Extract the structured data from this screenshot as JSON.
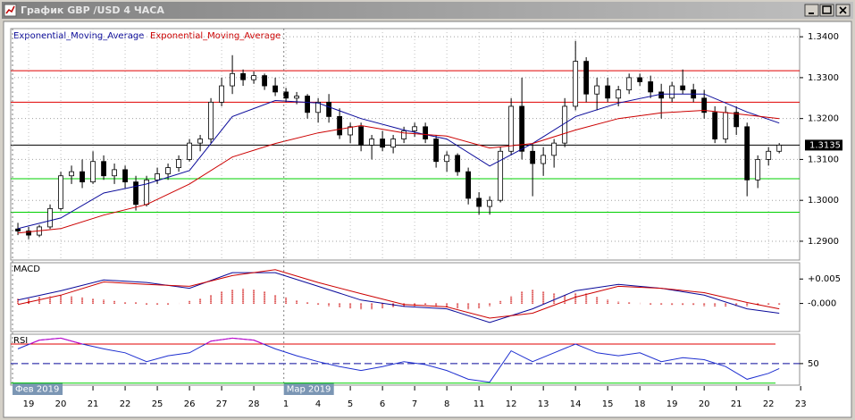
{
  "window": {
    "title": "График GBP /USD  4 ЧАСА"
  },
  "chart_data": [
    {
      "type": "candlestick",
      "candles": {
        "up_color": "#ffffff",
        "down_color": "#000000",
        "open": [
          1.293,
          1.2925,
          1.2915,
          1.2935,
          1.298,
          1.306,
          1.307,
          1.3045,
          1.3095,
          1.306,
          1.3075,
          1.3045,
          1.299,
          1.305,
          1.3065,
          1.308,
          1.31,
          1.314,
          1.315,
          1.324,
          1.328,
          1.331,
          1.3295,
          1.3305,
          1.328,
          1.3265,
          1.325,
          1.3255,
          1.3215,
          1.324,
          1.3205,
          1.316,
          1.318,
          1.3135,
          1.315,
          1.313,
          1.315,
          1.317,
          1.318,
          1.315,
          1.3095,
          1.311,
          1.307,
          1.3005,
          1.2985,
          1.3,
          1.312,
          1.323,
          1.312,
          1.309,
          1.311,
          1.314,
          1.323,
          1.334,
          1.326,
          1.328,
          1.325,
          1.327,
          1.33,
          1.329,
          1.3265,
          1.325,
          1.328,
          1.327,
          1.325,
          1.3215,
          1.315,
          1.3215,
          1.318,
          1.305,
          1.31,
          1.312
        ],
        "high": [
          1.2945,
          1.2935,
          1.294,
          1.299,
          1.307,
          1.3085,
          1.31,
          1.312,
          1.311,
          1.309,
          1.3085,
          1.306,
          1.306,
          1.308,
          1.309,
          1.311,
          1.315,
          1.316,
          1.325,
          1.33,
          1.3355,
          1.332,
          1.3315,
          1.331,
          1.33,
          1.3275,
          1.3265,
          1.326,
          1.325,
          1.326,
          1.3225,
          1.319,
          1.319,
          1.316,
          1.317,
          1.316,
          1.318,
          1.319,
          1.319,
          1.316,
          1.312,
          1.3115,
          1.308,
          1.302,
          1.301,
          1.313,
          1.325,
          1.33,
          1.314,
          1.313,
          1.315,
          1.325,
          1.339,
          1.335,
          1.33,
          1.33,
          1.328,
          1.331,
          1.331,
          1.3305,
          1.3285,
          1.329,
          1.332,
          1.3285,
          1.327,
          1.323,
          1.323,
          1.323,
          1.319,
          1.311,
          1.313,
          1.314
        ],
        "low": [
          1.2915,
          1.2905,
          1.291,
          1.293,
          1.2975,
          1.304,
          1.303,
          1.304,
          1.305,
          1.304,
          1.303,
          1.2975,
          1.2985,
          1.304,
          1.305,
          1.307,
          1.3095,
          1.312,
          1.314,
          1.323,
          1.326,
          1.328,
          1.3285,
          1.327,
          1.3255,
          1.324,
          1.3235,
          1.32,
          1.319,
          1.319,
          1.315,
          1.314,
          1.312,
          1.31,
          1.312,
          1.3115,
          1.314,
          1.3155,
          1.314,
          1.308,
          1.307,
          1.306,
          1.299,
          1.2965,
          1.2965,
          1.2995,
          1.311,
          1.31,
          1.301,
          1.306,
          1.308,
          1.313,
          1.322,
          1.324,
          1.322,
          1.324,
          1.323,
          1.326,
          1.328,
          1.325,
          1.32,
          1.324,
          1.326,
          1.324,
          1.32,
          1.314,
          1.314,
          1.316,
          1.301,
          1.303,
          1.3085,
          1.3115
        ],
        "close": [
          1.2925,
          1.2915,
          1.2935,
          1.298,
          1.306,
          1.307,
          1.3045,
          1.3095,
          1.306,
          1.3075,
          1.3045,
          1.299,
          1.305,
          1.3065,
          1.308,
          1.31,
          1.314,
          1.315,
          1.324,
          1.328,
          1.331,
          1.3295,
          1.3305,
          1.328,
          1.3265,
          1.325,
          1.3255,
          1.3215,
          1.324,
          1.3205,
          1.316,
          1.318,
          1.3135,
          1.315,
          1.313,
          1.315,
          1.317,
          1.318,
          1.315,
          1.3095,
          1.311,
          1.307,
          1.3005,
          1.2985,
          1.3,
          1.312,
          1.323,
          1.312,
          1.309,
          1.311,
          1.314,
          1.323,
          1.334,
          1.326,
          1.328,
          1.325,
          1.327,
          1.33,
          1.329,
          1.3265,
          1.325,
          1.328,
          1.327,
          1.325,
          1.3215,
          1.315,
          1.3215,
          1.318,
          1.305,
          1.31,
          1.312,
          1.3135
        ]
      },
      "lines": [
        {
          "name": "Exponential_Moving_Average",
          "color": "#0a0a9a",
          "x": [
            0,
            4,
            8,
            12,
            16,
            20,
            24,
            28,
            32,
            36,
            40,
            44,
            48,
            52,
            56,
            60,
            64,
            68,
            71
          ],
          "values": [
            1.2931,
            1.2957,
            1.3018,
            1.304,
            1.3073,
            1.3205,
            1.3244,
            1.3238,
            1.32,
            1.3172,
            1.315,
            1.3084,
            1.3139,
            1.3205,
            1.3238,
            1.326,
            1.326,
            1.3216,
            1.3189
          ]
        },
        {
          "name": "Exponential_Moving_Average",
          "color": "#cc0000",
          "x": [
            0,
            4,
            8,
            12,
            16,
            20,
            24,
            28,
            32,
            36,
            40,
            44,
            48,
            52,
            56,
            60,
            64,
            68,
            71
          ],
          "values": [
            1.292,
            1.2931,
            1.2964,
            1.299,
            1.304,
            1.3106,
            1.3139,
            1.3165,
            1.3183,
            1.3165,
            1.3157,
            1.3128,
            1.3139,
            1.3172,
            1.32,
            1.3214,
            1.322,
            1.3209,
            1.32
          ]
        }
      ],
      "hlines": [
        {
          "value": 1.3317,
          "color": "#e00000"
        },
        {
          "value": 1.324,
          "color": "#e00000"
        },
        {
          "value": 1.3053,
          "color": "#00d000"
        },
        {
          "value": 1.2971,
          "color": "#00d000"
        }
      ],
      "current_price": 1.3135,
      "ylim": [
        1.2854,
        1.342
      ],
      "yticks": [
        {
          "value": 1.29,
          "label": "1.2900"
        },
        {
          "value": 1.3,
          "label": "1.3000"
        },
        {
          "value": 1.31,
          "label": "1.3100"
        },
        {
          "value": 1.32,
          "label": "1.3200"
        },
        {
          "value": 1.33,
          "label": "1.3300"
        },
        {
          "value": 1.34,
          "label": "1.3400"
        }
      ],
      "xlim": [
        -0.67,
        72.9
      ],
      "xticks": [
        {
          "value": 1,
          "label": "19"
        },
        {
          "value": 4,
          "label": "20"
        },
        {
          "value": 7,
          "label": "21"
        },
        {
          "value": 10,
          "label": "22"
        },
        {
          "value": 13,
          "label": "25"
        },
        {
          "value": 16,
          "label": "26"
        },
        {
          "value": 19,
          "label": "27"
        },
        {
          "value": 22,
          "label": "28"
        },
        {
          "value": 25,
          "label": "1"
        },
        {
          "value": 28,
          "label": "4"
        },
        {
          "value": 31,
          "label": "5"
        },
        {
          "value": 34,
          "label": "6"
        },
        {
          "value": 37,
          "label": "7"
        },
        {
          "value": 40,
          "label": "8"
        },
        {
          "value": 43,
          "label": "11"
        },
        {
          "value": 46,
          "label": "12"
        },
        {
          "value": 49,
          "label": "13"
        },
        {
          "value": 52,
          "label": "14"
        },
        {
          "value": 55,
          "label": "15"
        },
        {
          "value": 58,
          "label": "18"
        },
        {
          "value": 61,
          "label": "19"
        },
        {
          "value": 64,
          "label": "20"
        },
        {
          "value": 67,
          "label": "21"
        },
        {
          "value": 70,
          "label": "22"
        },
        {
          "value": 73,
          "label": "23"
        }
      ],
      "months": [
        {
          "value": -0.5,
          "label": "Фев 2019"
        },
        {
          "value": 24.8,
          "label": "Мар 2019"
        }
      ],
      "grid": true
    },
    {
      "type": "macd",
      "title": "MACD",
      "histogram": {
        "color": "#cc0000",
        "values": [
          0.001,
          0.0012,
          0.0013,
          0.0015,
          0.0016,
          0.0015,
          0.0012,
          0.001,
          0.0008,
          0.0005,
          0.0003,
          0.0002,
          -0.0002,
          -0.0003,
          -0.0002,
          0.0,
          0.0005,
          0.001,
          0.0018,
          0.0024,
          0.0028,
          0.003,
          0.0028,
          0.0024,
          0.0018,
          0.0012,
          0.0006,
          0.0002,
          -0.0002,
          -0.0005,
          -0.0008,
          -0.001,
          -0.0012,
          -0.0012,
          -0.001,
          -0.0008,
          -0.0006,
          -0.0005,
          -0.0004,
          -0.0006,
          -0.0008,
          -0.001,
          -0.0012,
          -0.001,
          -0.0005,
          0.0005,
          0.0015,
          0.0025,
          0.0028,
          0.0025,
          0.002,
          0.0018,
          0.0022,
          0.002,
          0.0014,
          0.0008,
          0.0004,
          0.0002,
          0.0,
          -0.0002,
          -0.0003,
          -0.0004,
          -0.0004,
          -0.0004,
          -0.0005,
          -0.0006,
          -0.0006,
          -0.0005,
          -0.0005,
          -0.0004,
          -0.0003,
          -0.0002
        ]
      },
      "series": [
        {
          "color": "#0a0a9a",
          "x": [
            0,
            4,
            8,
            12,
            16,
            20,
            24,
            28,
            32,
            36,
            40,
            44,
            48,
            52,
            56,
            60,
            64,
            68,
            71
          ],
          "values": [
            0.0007,
            0.0026,
            0.0048,
            0.0043,
            0.0031,
            0.0063,
            0.0063,
            0.0035,
            0.0007,
            -0.0006,
            -0.0011,
            -0.0039,
            -0.0011,
            0.0026,
            0.0039,
            0.0031,
            0.0017,
            -0.0011,
            -0.002
          ]
        },
        {
          "color": "#cc0000",
          "x": [
            0,
            4,
            8,
            12,
            16,
            20,
            24,
            28,
            32,
            36,
            40,
            44,
            48,
            52,
            56,
            60,
            64,
            68,
            71
          ],
          "values": [
            -0.0002,
            0.0017,
            0.0044,
            0.0039,
            0.0035,
            0.0057,
            0.0069,
            0.0043,
            0.002,
            -0.0002,
            -0.0007,
            -0.003,
            -0.002,
            0.0013,
            0.0035,
            0.0031,
            0.0022,
            0.0002,
            -0.0011
          ]
        }
      ],
      "ylim": [
        -0.00574,
        0.00833
      ],
      "yticks": [
        {
          "value": 0.005,
          "label": "+0.005"
        },
        {
          "value": 0,
          "label": "-0.000"
        }
      ]
    },
    {
      "type": "rsi",
      "title": "RSI",
      "series": [
        {
          "color": "#1e2fd0",
          "high_color": "#c800c8",
          "x": [
            0,
            2,
            4,
            6,
            8,
            10,
            12,
            14,
            16,
            18,
            20,
            22,
            24,
            26,
            28,
            30,
            32,
            34,
            36,
            38,
            40,
            42,
            44,
            46,
            48,
            50,
            52,
            54,
            56,
            58,
            60,
            62,
            64,
            66,
            68,
            70,
            71
          ],
          "values": [
            65,
            74,
            76,
            70,
            65,
            61,
            52,
            58,
            61,
            73,
            76,
            74,
            65,
            58,
            52,
            47,
            43,
            47,
            52,
            49,
            43,
            34,
            31,
            63,
            52,
            61,
            70,
            61,
            58,
            61,
            52,
            56,
            54,
            47,
            34,
            40,
            45
          ]
        }
      ],
      "levels": [
        {
          "value": 70,
          "color": "#e00000"
        },
        {
          "value": 30,
          "color": "#00d000"
        }
      ],
      "ylim": [
        28,
        80
      ],
      "yticks": [
        50
      ]
    }
  ]
}
